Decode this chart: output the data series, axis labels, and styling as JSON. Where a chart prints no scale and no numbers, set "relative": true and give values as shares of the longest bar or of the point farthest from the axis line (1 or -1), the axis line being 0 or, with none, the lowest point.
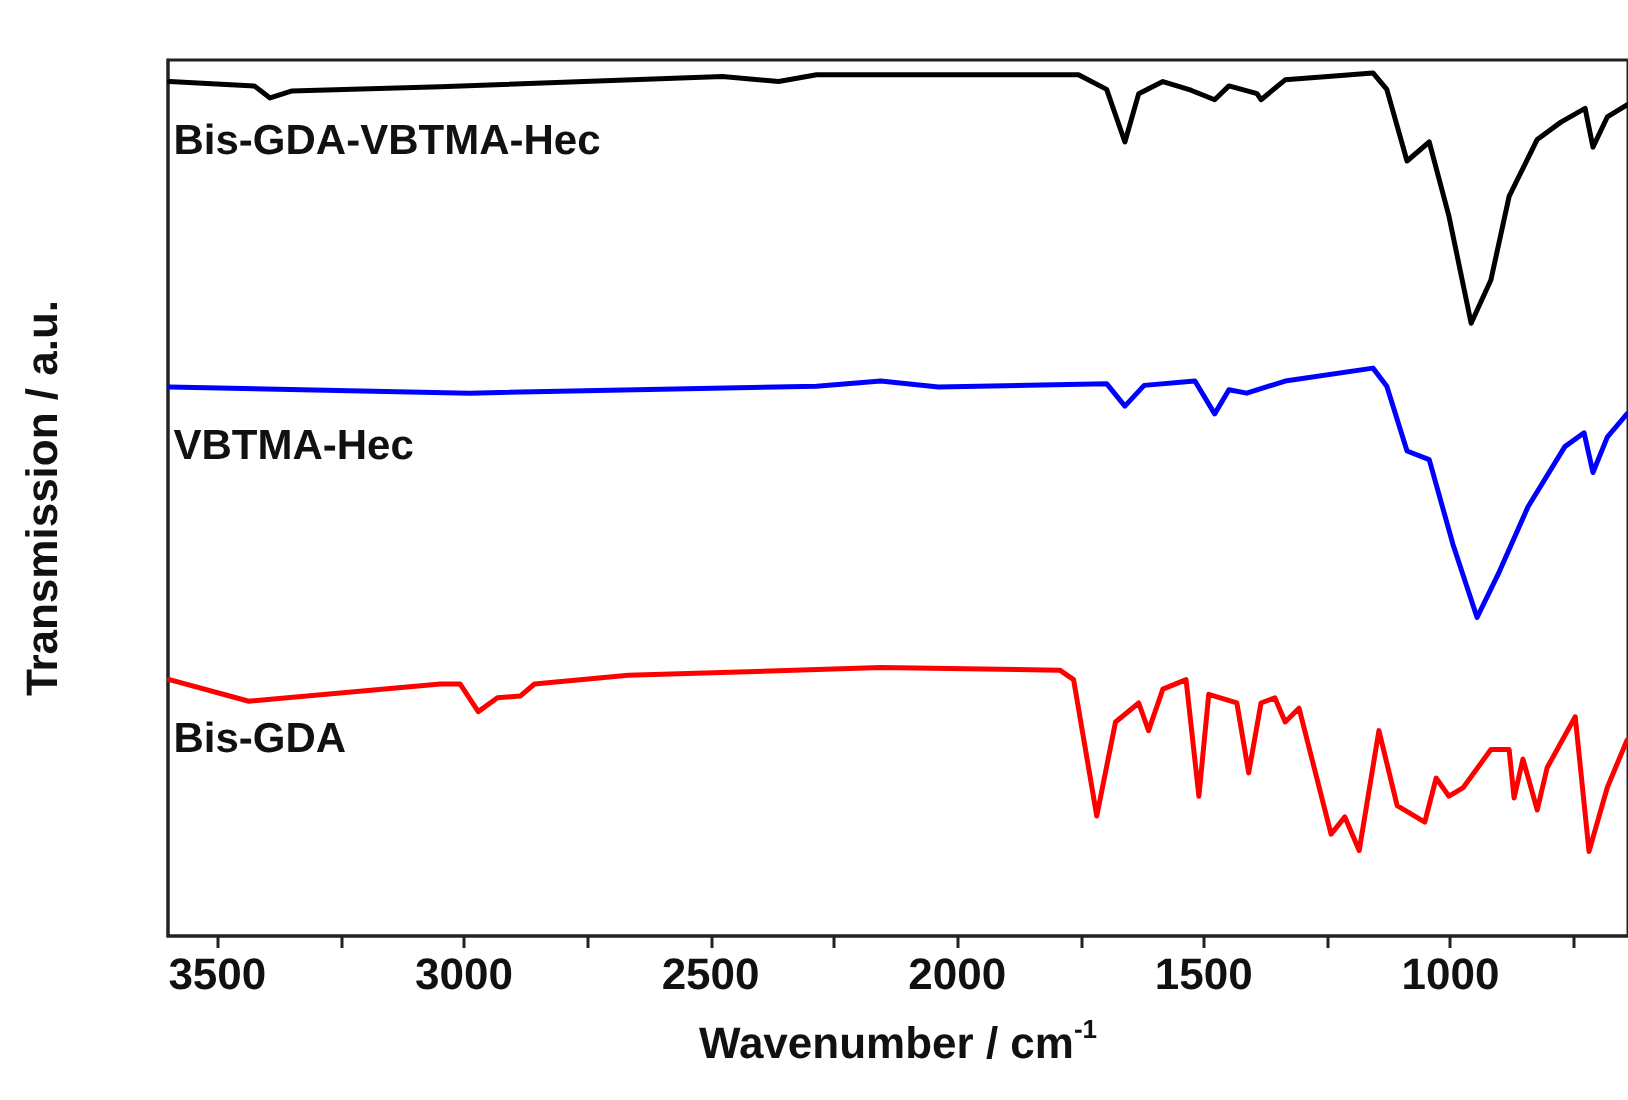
{
  "chart_data": {
    "type": "line",
    "relative": true,
    "xlabel": "Wavenumber / cm$^{-1}$",
    "ylabel": "Transmission / a.u.",
    "xlim": [
      3600,
      640
    ],
    "xticks": [
      3500,
      {
        "value": 3250,
        "label": null
      },
      3000,
      {
        "value": 2750,
        "label": null
      },
      2500,
      {
        "value": 2250,
        "label": null
      },
      2000,
      {
        "value": 1750,
        "label": null
      },
      1500,
      {
        "value": 1250,
        "label": null
      },
      1000,
      {
        "value": 750,
        "label": null
      }
    ],
    "grid": false,
    "legend": false,
    "marker": "none",
    "line_style": "solid",
    "series": [
      {
        "name": "Bis-GDA-VBTMA-Hec",
        "color": "#000000",
        "x": [
          3597,
          3425,
          3393,
          3350,
          3048,
          2476,
          2362,
          2285,
          1754,
          1697,
          1660,
          1632,
          1583,
          1526,
          1478,
          1449,
          1392,
          1384,
          1335,
          1222,
          1157,
          1129,
          1088,
          1043,
          1003,
          958,
          918,
          881,
          824,
          776,
          727,
          711,
          682,
          642
        ],
        "values": [
          0.99,
          0.985,
          0.971,
          0.979,
          0.984,
          0.996,
          0.99,
          0.998,
          0.998,
          0.981,
          0.92,
          0.976,
          0.99,
          0.98,
          0.969,
          0.985,
          0.976,
          0.969,
          0.992,
          0.997,
          1.0,
          0.981,
          0.898,
          0.92,
          0.834,
          0.71,
          0.76,
          0.857,
          0.923,
          0.943,
          0.959,
          0.914,
          0.949,
          0.963
        ]
      },
      {
        "name": "VBTMA-Hec",
        "color": "#0000ff",
        "x": [
          3597,
          2989,
          2285,
          2155,
          2038,
          1697,
          1660,
          1621,
          1518,
          1478,
          1449,
          1413,
          1335,
          1157,
          1129,
          1088,
          1043,
          995,
          946,
          901,
          843,
          768,
          729,
          711,
          682,
          642
        ],
        "values": [
          0.636,
          0.629,
          0.637,
          0.643,
          0.636,
          0.64,
          0.614,
          0.638,
          0.643,
          0.605,
          0.633,
          0.629,
          0.643,
          0.658,
          0.637,
          0.562,
          0.552,
          0.454,
          0.369,
          0.422,
          0.497,
          0.567,
          0.583,
          0.537,
          0.578,
          0.605
        ]
      },
      {
        "name": "Bis-GDA",
        "color": "#ff0000",
        "x": [
          3597,
          3436,
          3048,
          3008,
          2971,
          2932,
          2886,
          2857,
          2667,
          2155,
          1792,
          1764,
          1717,
          1679,
          1632,
          1612,
          1583,
          1536,
          1510,
          1490,
          1433,
          1409,
          1384,
          1356,
          1335,
          1307,
          1242,
          1214,
          1185,
          1145,
          1108,
          1052,
          1029,
          1003,
          974,
          918,
          881,
          871,
          853,
          824,
          804,
          747,
          719,
          682,
          642
        ],
        "values": [
          0.297,
          0.272,
          0.292,
          0.292,
          0.26,
          0.276,
          0.278,
          0.292,
          0.302,
          0.311,
          0.308,
          0.297,
          0.139,
          0.248,
          0.27,
          0.238,
          0.286,
          0.297,
          0.162,
          0.28,
          0.27,
          0.189,
          0.27,
          0.276,
          0.248,
          0.264,
          0.118,
          0.138,
          0.099,
          0.238,
          0.151,
          0.132,
          0.183,
          0.162,
          0.172,
          0.216,
          0.216,
          0.16,
          0.205,
          0.146,
          0.195,
          0.254,
          0.098,
          0.172,
          0.227
        ]
      }
    ]
  }
}
